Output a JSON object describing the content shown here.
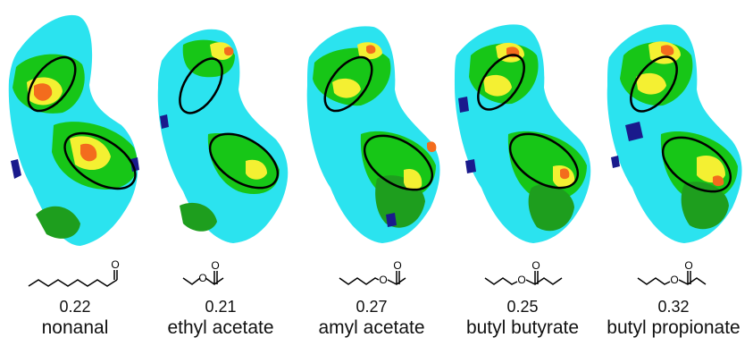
{
  "colors": {
    "background": "#ffffff",
    "base": "#2be3ef",
    "low": "#17c617",
    "mid": "#1e9e1e",
    "high": "#f4f032",
    "peak": "#f36c1d",
    "hole": "#1a1a8c",
    "outline": "#000000"
  },
  "panels": [
    {
      "value": "0.22",
      "name": "nonanal",
      "molecule": "nonanal-structure"
    },
    {
      "value": "0.21",
      "name": "ethyl acetate",
      "molecule": "ethyl-acetate-structure"
    },
    {
      "value": "0.27",
      "name": "amyl acetate",
      "molecule": "amyl-acetate-structure"
    },
    {
      "value": "0.25",
      "name": "butyl butyrate",
      "molecule": "butyl-butyrate-structure"
    },
    {
      "value": "0.32",
      "name": "butyl propionate",
      "molecule": "butyl-propionate-structure"
    }
  ],
  "atom_label": "O"
}
